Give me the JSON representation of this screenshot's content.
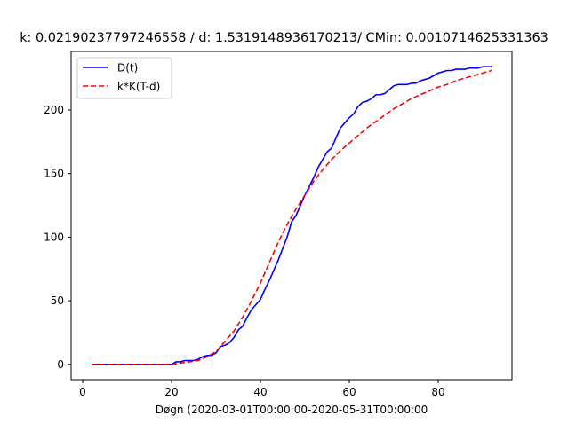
{
  "chart_data": {
    "type": "line",
    "title": "k: 0.021902377972465​58 / d: 1.5319148936170213/ CMin: 0.0010714625331363",
    "xlabel": "Døgn (2020-03-01T00:00:00-2020-05-31T00:00:00",
    "ylabel": "",
    "xlim": [
      -2.6,
      96.6
    ],
    "ylim": [
      -12,
      246
    ],
    "x_ticks": [
      0,
      20,
      40,
      60,
      80
    ],
    "y_ticks": [
      0,
      50,
      100,
      150,
      200
    ],
    "grid": false,
    "legend_position": "top-left",
    "series": [
      {
        "name": "D(t)",
        "color": "#0000ff",
        "style": "solid",
        "x": [
          2,
          19,
          20,
          21,
          22,
          23,
          24,
          25,
          26,
          27,
          28,
          29,
          30,
          31,
          32,
          33,
          34,
          35,
          36,
          37,
          38,
          39,
          40,
          41,
          42,
          43,
          44,
          45,
          46,
          47,
          48,
          49,
          50,
          51,
          52,
          53,
          54,
          55,
          56,
          57,
          58,
          59,
          60,
          61,
          62,
          63,
          64,
          65,
          66,
          67,
          68,
          69,
          70,
          71,
          72,
          73,
          74,
          75,
          76,
          77,
          78,
          79,
          80,
          81,
          82,
          83,
          84,
          85,
          86,
          87,
          88,
          89,
          90,
          91,
          92
        ],
        "y": [
          0,
          0,
          0,
          2,
          2,
          3,
          3,
          3,
          4,
          6,
          7,
          7,
          9,
          14,
          15,
          17,
          21,
          27,
          30,
          37,
          43,
          47,
          51,
          59,
          66,
          74,
          82,
          91,
          100,
          112,
          117,
          125,
          133,
          140,
          147,
          155,
          161,
          167,
          170,
          178,
          186,
          190,
          194,
          197,
          203,
          206,
          207,
          209,
          212,
          212,
          213,
          216,
          219,
          220,
          220,
          220,
          221,
          221,
          223,
          224,
          225,
          227,
          229,
          230,
          231,
          231,
          232,
          232,
          232,
          233,
          233,
          233,
          234,
          234,
          234
        ]
      },
      {
        "name": "k*K(T-d)",
        "color": "#ff0000",
        "style": "dashed",
        "x": [
          2,
          20,
          22,
          24,
          26,
          28,
          30,
          32,
          34,
          36,
          38,
          40,
          42,
          44,
          46,
          48,
          50,
          52,
          54,
          56,
          58,
          60,
          62,
          64,
          66,
          68,
          70,
          72,
          74,
          76,
          78,
          80,
          82,
          84,
          86,
          88,
          90,
          92
        ],
        "y": [
          0,
          0,
          1,
          2,
          3,
          6,
          10,
          18,
          26,
          37,
          50,
          64,
          80,
          96,
          110,
          122,
          133,
          144,
          153,
          161,
          168,
          174,
          180,
          186,
          191,
          196,
          201,
          205,
          209,
          212,
          215,
          218,
          220,
          223,
          225,
          227,
          229,
          231
        ]
      }
    ]
  }
}
